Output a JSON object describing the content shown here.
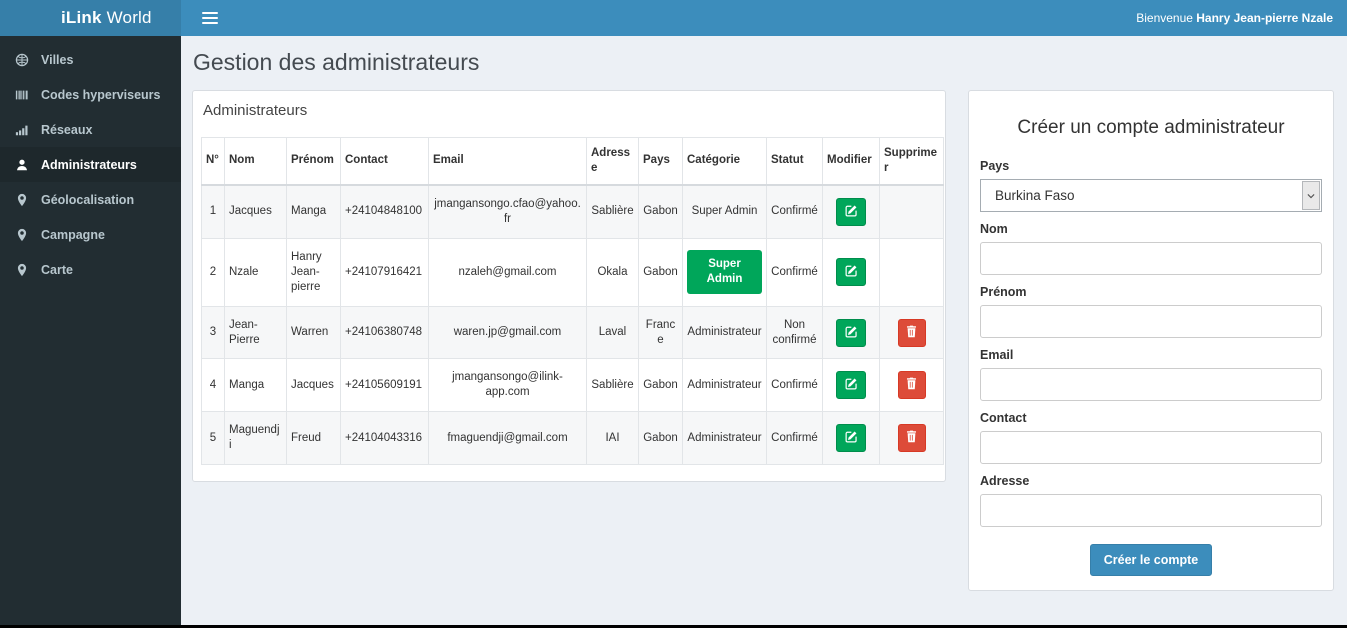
{
  "brand": {
    "bold": "iLink",
    "rest": " World",
    "logo_icon": "globe-pin-icon"
  },
  "navbar": {
    "menu_icon": "hamburger-icon",
    "welcome_prefix": "Bienvenue ",
    "welcome_name": "Hanry Jean-pierre Nzale"
  },
  "sidebar": {
    "items": [
      {
        "label": "Villes",
        "icon": "globe-icon",
        "active": false
      },
      {
        "label": "Codes hyperviseurs",
        "icon": "barcode-icon",
        "active": false
      },
      {
        "label": "Réseaux",
        "icon": "signal-icon",
        "active": false
      },
      {
        "label": "Administrateurs",
        "icon": "user-icon",
        "active": true
      },
      {
        "label": "Géolocalisation",
        "icon": "marker-icon",
        "active": false
      },
      {
        "label": "Campagne",
        "icon": "marker-icon",
        "active": false
      },
      {
        "label": "Carte",
        "icon": "marker-icon",
        "active": false
      }
    ]
  },
  "page": {
    "title": "Gestion des administrateurs"
  },
  "admin_panel": {
    "title": "Administrateurs",
    "table": {
      "headers": [
        "N°",
        "Nom",
        "Prénom",
        "Contact",
        "Email",
        "Adresse",
        "Pays",
        "Catégorie",
        "Statut",
        "Modifier",
        "Supprimer"
      ],
      "rows": [
        {
          "num": "1",
          "nom": "Jacques",
          "prenom": "Manga",
          "contact": "+24104848100",
          "email": "jmangansongo.cfao@yahoo.fr",
          "adresse": "Sablière",
          "pays": "Gabon",
          "categorie": "Super Admin",
          "categorie_badge": false,
          "statut": "Confirmé",
          "deletable": false
        },
        {
          "num": "2",
          "nom": "Nzale",
          "prenom": "Hanry Jean-pierre",
          "contact": "+24107916421",
          "email": "nzaleh@gmail.com",
          "adresse": "Okala",
          "pays": "Gabon",
          "categorie": "Super Admin",
          "categorie_badge": true,
          "statut": "Confirmé",
          "deletable": false
        },
        {
          "num": "3",
          "nom": "Jean-Pierre",
          "prenom": "Warren",
          "contact": "+24106380748",
          "email": "waren.jp@gmail.com",
          "adresse": "Laval",
          "pays": "France",
          "categorie": "Administrateur",
          "categorie_badge": false,
          "statut": "Non confirmé",
          "deletable": true
        },
        {
          "num": "4",
          "nom": "Manga",
          "prenom": "Jacques",
          "contact": "+24105609191",
          "email": "jmangansongo@ilink-app.com",
          "adresse": "Sablière",
          "pays": "Gabon",
          "categorie": "Administrateur",
          "categorie_badge": false,
          "statut": "Confirmé",
          "deletable": true
        },
        {
          "num": "5",
          "nom": "Maguendji",
          "prenom": "Freud",
          "contact": "+24104043316",
          "email": "fmaguendji@gmail.com",
          "adresse": "IAI",
          "pays": "Gabon",
          "categorie": "Administrateur",
          "categorie_badge": false,
          "statut": "Confirmé",
          "deletable": true
        }
      ],
      "edit_icon": "edit-icon",
      "delete_icon": "trash-icon"
    }
  },
  "form_panel": {
    "title": "Créer un compte administrateur",
    "fields": [
      {
        "name": "pays",
        "label": "Pays",
        "type": "select",
        "value": "Burkina Faso",
        "icon": "chevron-down-icon"
      },
      {
        "name": "nom",
        "label": "Nom",
        "type": "text",
        "value": "",
        "placeholder": ""
      },
      {
        "name": "prenom",
        "label": "Prénom",
        "type": "text",
        "value": "",
        "placeholder": ""
      },
      {
        "name": "email",
        "label": "Email",
        "type": "text",
        "value": "",
        "placeholder": ""
      },
      {
        "name": "contact",
        "label": "Contact",
        "type": "text",
        "value": "",
        "placeholder": ""
      },
      {
        "name": "adresse",
        "label": "Adresse",
        "type": "text",
        "value": "",
        "placeholder": ""
      }
    ],
    "submit_label": "Créer le compte"
  },
  "colors": {
    "navbar": "#3c8dbc",
    "logo_bg": "#367fa9",
    "sidebar": "#222d32",
    "page_bg": "#ecf0f5",
    "green": "#00a65a",
    "red": "#dd4b39"
  }
}
